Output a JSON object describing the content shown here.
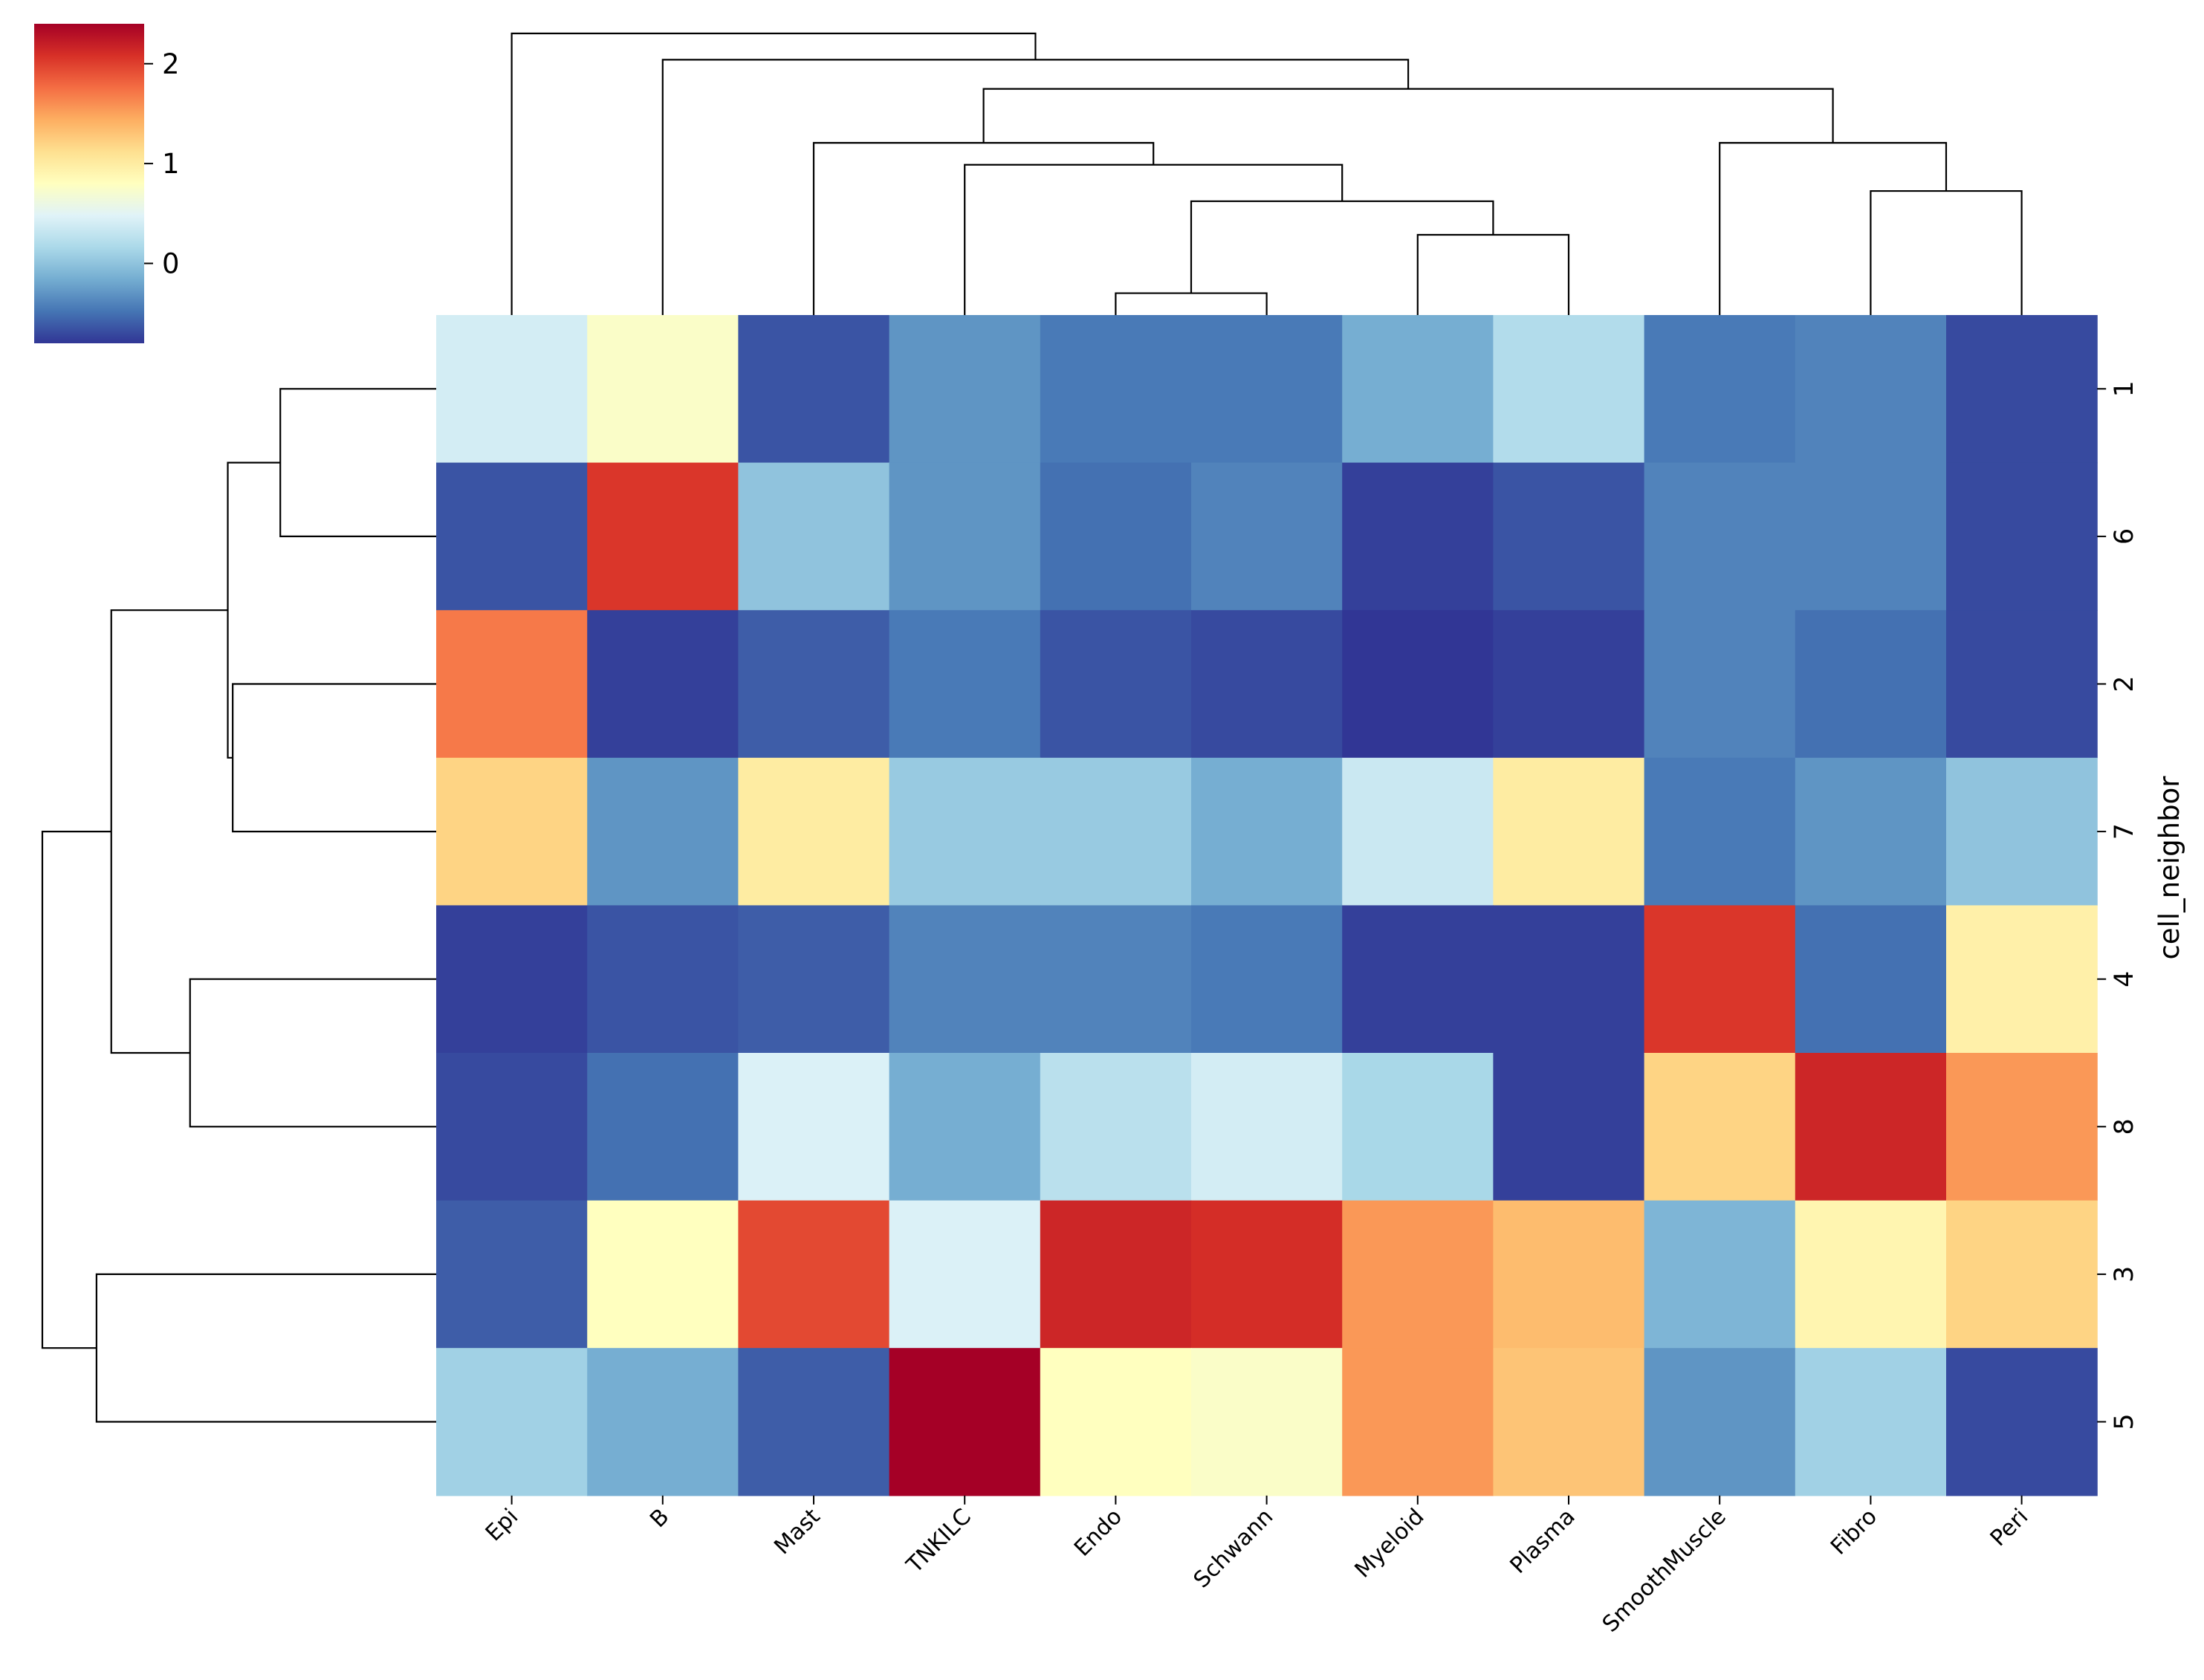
{
  "chart_data": {
    "type": "heatmap",
    "variant": "clustermap",
    "colormap": "RdYlBu_r",
    "x_categories": [
      "Epi",
      "B",
      "Mast",
      "TNKILC",
      "Endo",
      "Schwann",
      "Myeloid",
      "Plasma",
      "SmoothMuscle",
      "Fibro",
      "Peri"
    ],
    "y_categories": [
      "1",
      "6",
      "2",
      "7",
      "4",
      "8",
      "3",
      "5"
    ],
    "ylabel": "cell_neighbor",
    "xlabel": "",
    "title": "",
    "values": [
      [
        0.4,
        0.75,
        -0.65,
        -0.3,
        -0.45,
        -0.45,
        -0.15,
        0.2,
        -0.45,
        -0.4,
        -0.7
      ],
      [
        -0.65,
        2.05,
        0.0,
        -0.3,
        -0.5,
        -0.4,
        -0.75,
        -0.65,
        -0.4,
        -0.4,
        -0.7
      ],
      [
        1.7,
        -0.75,
        -0.6,
        -0.45,
        -0.65,
        -0.7,
        -0.8,
        -0.75,
        -0.4,
        -0.5,
        -0.7
      ],
      [
        1.2,
        -0.3,
        1.0,
        0.05,
        0.05,
        -0.15,
        0.35,
        1.0,
        -0.45,
        -0.3,
        0.0
      ],
      [
        -0.75,
        -0.65,
        -0.6,
        -0.4,
        -0.4,
        -0.45,
        -0.75,
        -0.75,
        2.05,
        -0.5,
        0.95
      ],
      [
        -0.7,
        -0.5,
        0.45,
        -0.15,
        0.25,
        0.4,
        0.15,
        -0.75,
        1.2,
        2.15,
        1.55
      ],
      [
        -0.6,
        0.8,
        1.95,
        0.45,
        2.15,
        2.1,
        1.55,
        1.35,
        -0.1,
        0.9,
        1.2
      ],
      [
        0.1,
        -0.15,
        -0.6,
        2.4,
        0.8,
        0.75,
        1.55,
        1.3,
        -0.3,
        0.1,
        -0.7
      ]
    ],
    "colorbar": {
      "range": [
        -0.8,
        2.4
      ],
      "ticks": [
        "0",
        "1",
        "2"
      ],
      "tick_values": [
        0,
        1,
        2
      ]
    },
    "col_dendrogram": [
      {
        "x": [
          4,
          5
        ],
        "h": 0.15
      },
      {
        "x": [
          6,
          7
        ],
        "h": 0.55
      },
      {
        "x": [
          4.5,
          6.5
        ],
        "h": 0.78
      },
      {
        "x": [
          3,
          5.5
        ],
        "h": 1.03
      },
      {
        "x": [
          2,
          4.25
        ],
        "h": 1.18
      },
      {
        "x": [
          9,
          10
        ],
        "h": 0.85
      },
      {
        "x": [
          8,
          9.5
        ],
        "h": 1.18
      },
      {
        "x": [
          3.125,
          8.75
        ],
        "h": 1.55
      },
      {
        "x": [
          1,
          5.9375
        ],
        "h": 1.75
      },
      {
        "x": [
          0,
          3.46875
        ],
        "h": 1.93
      }
    ],
    "row_dendrogram": [
      {
        "y": [
          0,
          1
        ],
        "h": 0.95
      },
      {
        "y": [
          2,
          3
        ],
        "h": 1.24
      },
      {
        "y": [
          0.5,
          2.5
        ],
        "h": 1.27
      },
      {
        "y": [
          4,
          5
        ],
        "h": 1.5
      },
      {
        "y": [
          1.5,
          4.5
        ],
        "h": 1.98
      },
      {
        "y": [
          6,
          7
        ],
        "h": 2.07
      },
      {
        "y": [
          3,
          6.5
        ],
        "h": 2.4
      }
    ]
  }
}
